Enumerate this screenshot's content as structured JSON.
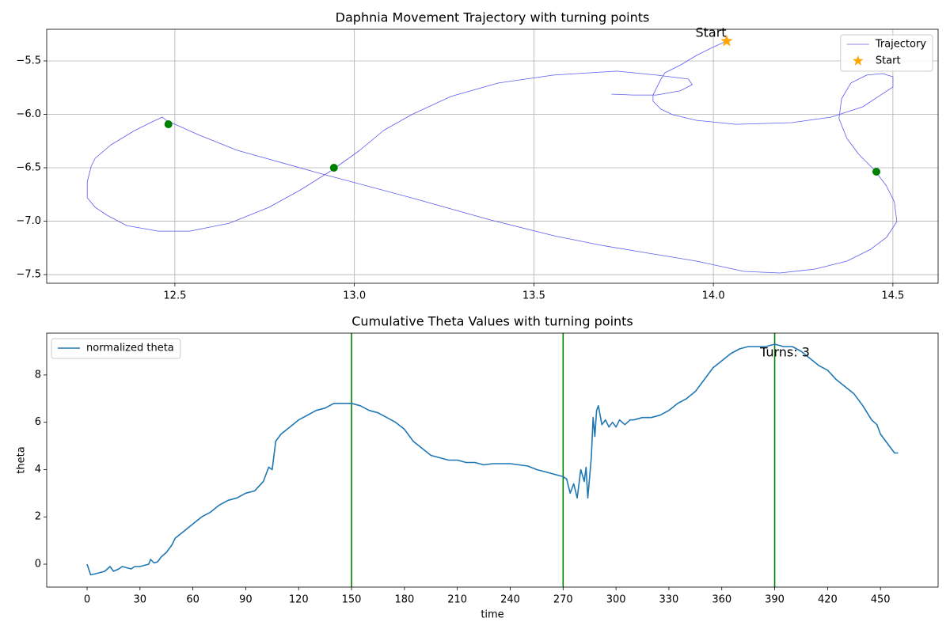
{
  "chart_data": [
    {
      "type": "line",
      "title": "Daphnia Movement Trajectory with turning points",
      "xlim": [
        12.143,
        14.626
      ],
      "ylim": [
        -7.581,
        -5.204
      ],
      "xticks": [
        12.5,
        {
          "value": 13,
          "label": "13.0"
        },
        13.5,
        {
          "value": 14,
          "label": "14.0"
        },
        14.5
      ],
      "yticks": [
        {
          "value": -7.5,
          "label": "−7.5"
        },
        {
          "value": -7,
          "label": "−7.0"
        },
        {
          "value": -6.5,
          "label": "−6.5"
        },
        {
          "value": -6,
          "label": "−6.0"
        },
        {
          "value": -5.5,
          "label": "−5.5"
        }
      ],
      "grid": true,
      "legend": "upper right",
      "series": [
        {
          "name": "Trajectory",
          "color": "#5b5bef",
          "x": [
            14.037,
            13.997,
            13.953,
            13.909,
            13.865,
            13.854,
            13.843,
            13.832,
            13.832,
            13.854,
            13.887,
            13.953,
            14.063,
            14.218,
            14.328,
            14.416,
            14.5,
            14.5,
            14.471,
            14.427,
            14.383,
            14.357,
            14.35,
            14.372,
            14.405,
            14.449,
            14.482,
            14.504,
            14.511,
            14.482,
            14.438,
            14.372,
            14.284,
            14.185,
            14.085,
            13.953,
            13.821,
            13.689,
            13.556,
            13.38,
            13.159,
            12.895,
            12.674,
            12.564,
            12.476,
            12.465,
            12.432,
            12.388,
            12.322,
            12.278,
            12.267,
            12.256,
            12.256,
            12.278,
            12.311,
            12.366,
            12.454,
            12.542,
            12.652,
            12.762,
            12.85,
            12.938,
            13.015,
            13.081,
            13.159,
            13.269,
            13.401,
            13.555,
            13.731,
            13.841,
            13.93,
            13.941,
            13.907,
            13.841,
            13.775,
            13.716
          ],
          "values": [
            -5.315,
            -5.374,
            -5.448,
            -5.537,
            -5.611,
            -5.67,
            -5.744,
            -5.819,
            -5.878,
            -5.952,
            -6.004,
            -6.056,
            -6.093,
            -6.078,
            -6.026,
            -5.93,
            -5.744,
            -5.648,
            -5.619,
            -5.633,
            -5.707,
            -5.856,
            -6.041,
            -6.226,
            -6.374,
            -6.522,
            -6.67,
            -6.819,
            -7.004,
            -7.152,
            -7.263,
            -7.374,
            -7.448,
            -7.485,
            -7.47,
            -7.374,
            -7.3,
            -7.226,
            -7.137,
            -6.989,
            -6.781,
            -6.544,
            -6.337,
            -6.189,
            -6.056,
            -6.026,
            -6.078,
            -6.152,
            -6.285,
            -6.411,
            -6.485,
            -6.633,
            -6.781,
            -6.87,
            -6.944,
            -7.041,
            -7.093,
            -7.093,
            -7.019,
            -6.87,
            -6.707,
            -6.522,
            -6.337,
            -6.152,
            -6.004,
            -5.833,
            -5.707,
            -5.633,
            -5.596,
            -5.633,
            -5.67,
            -5.722,
            -5.781,
            -5.819,
            -5.819,
            -5.811
          ]
        },
        {
          "name": "Start",
          "color": "orange",
          "marker": "star",
          "x": [
            14.037
          ],
          "values": [
            -5.315
          ]
        }
      ],
      "turning_points": {
        "color": "green",
        "x": [
          12.482,
          12.943,
          14.454
        ],
        "values": [
          -6.093,
          -6.5,
          -6.537
        ]
      },
      "annotations": [
        {
          "text": "Start",
          "color": "orange"
        }
      ]
    },
    {
      "type": "line",
      "title": "Cumulative Theta Values with turning points",
      "x_label": "time",
      "y_label": "theta",
      "xlim": [
        -22.9,
        482.7
      ],
      "ylim": [
        -0.97,
        9.77
      ],
      "xticks": [
        0,
        30,
        60,
        90,
        120,
        150,
        180,
        210,
        240,
        270,
        300,
        330,
        360,
        390,
        420,
        450
      ],
      "yticks": [
        0,
        2,
        4,
        6,
        8
      ],
      "grid": false,
      "legend": "upper left",
      "x": [
        0,
        2,
        5,
        10,
        13,
        15,
        18,
        20,
        25,
        27,
        30,
        35,
        36,
        38,
        40,
        42,
        45,
        48,
        50,
        55,
        60,
        65,
        70,
        75,
        80,
        85,
        90,
        95,
        100,
        103,
        105,
        107,
        110,
        115,
        120,
        125,
        130,
        135,
        140,
        145,
        150,
        155,
        160,
        165,
        170,
        175,
        180,
        185,
        190,
        195,
        200,
        205,
        210,
        215,
        220,
        225,
        230,
        240,
        245,
        250,
        255,
        260,
        265,
        270,
        272,
        274,
        276,
        278,
        280,
        282,
        283,
        284,
        286,
        287,
        288,
        289,
        290,
        292,
        294,
        296,
        298,
        300,
        302,
        305,
        308,
        310,
        315,
        320,
        325,
        330,
        335,
        340,
        345,
        350,
        355,
        360,
        365,
        370,
        375,
        380,
        385,
        390,
        395,
        400,
        405,
        410,
        415,
        420,
        425,
        430,
        435,
        440,
        445,
        448,
        450,
        455,
        458,
        460
      ],
      "series": [
        {
          "name": "normalized theta",
          "color": "#1f77b4",
          "values": [
            0,
            -0.45,
            -0.4,
            -0.3,
            -0.1,
            -0.3,
            -0.2,
            -0.1,
            -0.2,
            -0.1,
            -0.1,
            0,
            0.2,
            0.05,
            0.1,
            0.3,
            0.5,
            0.8,
            1.1,
            1.4,
            1.7,
            2,
            2.2,
            2.5,
            2.7,
            2.8,
            3,
            3.1,
            3.5,
            4.1,
            4,
            5.2,
            5.5,
            5.8,
            6.1,
            6.3,
            6.5,
            6.6,
            6.8,
            6.8,
            6.8,
            6.7,
            6.5,
            6.4,
            6.2,
            6,
            5.7,
            5.2,
            4.9,
            4.6,
            4.5,
            4.4,
            4.4,
            4.3,
            4.3,
            4.2,
            4.25,
            4.25,
            4.2,
            4.15,
            4,
            3.9,
            3.8,
            3.7,
            3.6,
            3,
            3.4,
            2.8,
            4,
            3.5,
            4.1,
            2.8,
            4.5,
            6.2,
            5.4,
            6.5,
            6.7,
            5.9,
            6.1,
            5.8,
            6,
            5.8,
            6.1,
            5.9,
            6.1,
            6.1,
            6.2,
            6.2,
            6.3,
            6.5,
            6.8,
            7,
            7.3,
            7.8,
            8.3,
            8.6,
            8.9,
            9.1,
            9.2,
            9.2,
            9.2,
            9.3,
            9.2,
            9.2,
            9,
            8.7,
            8.4,
            8.2,
            7.8,
            7.5,
            7.2,
            6.7,
            6.1,
            5.9,
            5.5,
            5,
            4.7,
            4.7
          ]
        }
      ],
      "vlines": {
        "color": "green",
        "x": [
          150,
          270,
          390
        ]
      },
      "annotations": [
        {
          "text": "Turns: 3",
          "color": "red"
        }
      ]
    }
  ]
}
